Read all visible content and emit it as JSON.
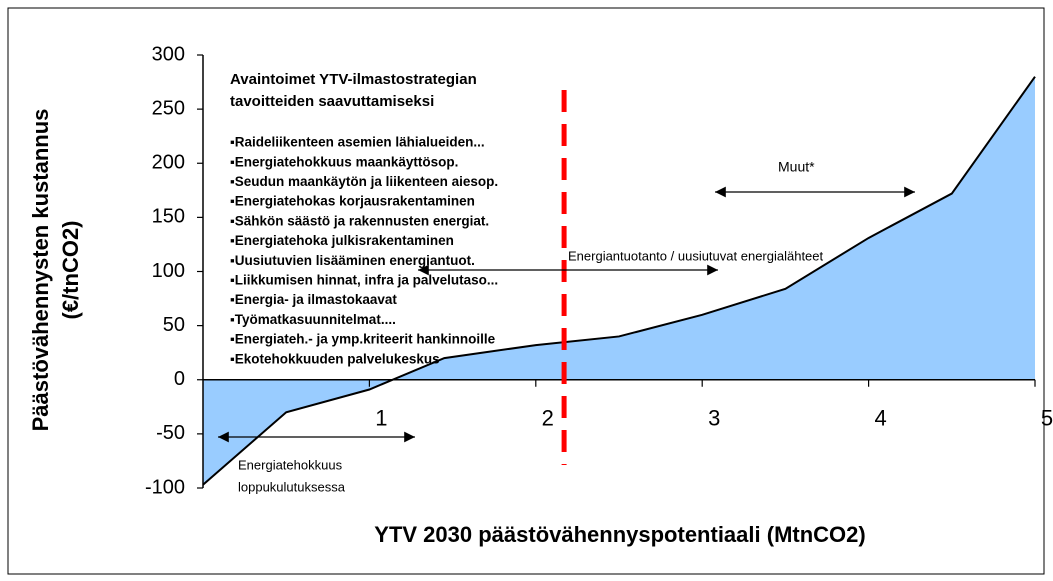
{
  "chart_data": {
    "type": "area",
    "x_label": "YTV 2030 päästövähennyspotentiaali (MtnCO2)",
    "y_label": [
      "Päästövähennysten kustannus",
      "(€/tnCO2)"
    ],
    "x": [
      0,
      0.5,
      1.0,
      1.45,
      2.0,
      2.5,
      3.0,
      3.5,
      4.0,
      4.5,
      5.0
    ],
    "values": [
      -97,
      -30,
      -9,
      20,
      32,
      40,
      60,
      84,
      131,
      172,
      280
    ],
    "color": "#99ccff",
    "xlim": [
      0,
      5
    ],
    "xticks": [
      1,
      2,
      3,
      4,
      5
    ],
    "ylim": [
      -100,
      300
    ],
    "yticks": [
      -100,
      -50,
      0,
      50,
      100,
      150,
      200,
      250,
      300
    ],
    "divider_x": 2.17,
    "box_title": [
      "Avaintoimet YTV-ilmastostrategian",
      "tavoitteiden saavuttamiseksi"
    ],
    "box_items": [
      "▪Raideliikenteen asemien lähialueiden...",
      "▪Energiatehokkuus maankäyttösop.",
      "▪Seudun maankäytön ja liikenteen aiesop.",
      "▪Energiatehokas korjausrakentaminen",
      "▪Sähkön säästö ja rakennusten energiat.",
      "▪Energiatehoka julkisrakentaminen",
      "▪Uusiutuvien lisääminen energiantuot.",
      "▪Liikkumisen hinnat, infra ja palvelutaso...",
      "▪Energia- ja ilmastokaavat",
      "▪Työmatkasuunnitelmat....",
      "▪Energiateh.- ja ymp.kriteerit hankinnoille",
      "▪Ekotehokkuuden palvelukeskus"
    ],
    "annotations": [
      "Muut*",
      "Energiantuotanto / uusiutuvat energialähteet",
      "Energiatehokkuus",
      "loppukulutuksessa"
    ]
  }
}
